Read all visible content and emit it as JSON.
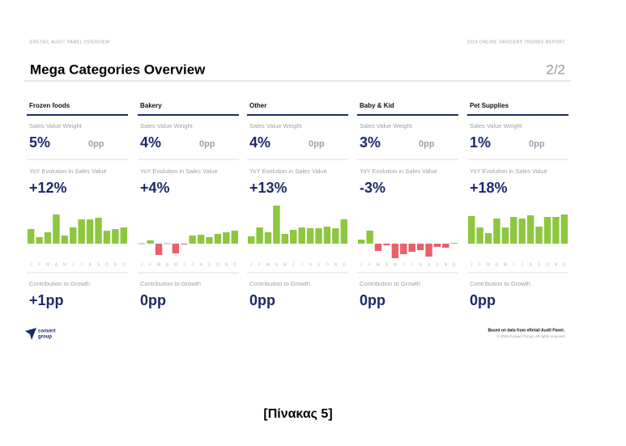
{
  "header": {
    "left": "ERETAIL AUDIT PANEL OVERVIEW",
    "right": "2024 ONLINE GROCERY TRENDS REPORT"
  },
  "title": "Mega Categories Overview",
  "page": "2/2",
  "labels": {
    "weight": "Sales Value Weight",
    "yoy": "YoY Evolution in Sales Value",
    "contribution": "Contribution to Growth"
  },
  "months": [
    "J",
    "F",
    "M",
    "A",
    "M",
    "J",
    "J",
    "A",
    "S",
    "O",
    "N",
    "D"
  ],
  "colors": {
    "positive": "#8dc63f",
    "negative": "#e8606b",
    "zero": "#aaaaaa"
  },
  "categories": [
    {
      "name": "Frozen foods",
      "weight": "5%",
      "weight_change": "0pp",
      "yoy": "+12%",
      "monthly": [
        9,
        4,
        7,
        18,
        5,
        10,
        15,
        15,
        16,
        8,
        9,
        10
      ],
      "contribution": "+1pp"
    },
    {
      "name": "Bakery",
      "weight": "4%",
      "weight_change": "0pp",
      "yoy": "+4%",
      "monthly": [
        0,
        2,
        -7,
        0,
        -6,
        -0.5,
        5,
        5.5,
        4,
        6,
        7,
        8
      ],
      "contribution": "0pp"
    },
    {
      "name": "Other",
      "weight": "4%",
      "weight_change": "0pp",
      "yoy": "+13%",
      "monthly": [
        4.5,
        10,
        7,
        23.5,
        6,
        8.5,
        10,
        9.5,
        9.5,
        10.5,
        9.5,
        15
      ],
      "contribution": "0pp"
    },
    {
      "name": "Baby & Kid",
      "weight": "3%",
      "weight_change": "0pp",
      "yoy": "-3%",
      "monthly": [
        2.5,
        8,
        -4.5,
        -1,
        -9,
        -6.5,
        -5,
        -4,
        -8,
        -2,
        -2.5,
        0.5
      ],
      "contribution": "0pp"
    },
    {
      "name": "Pet Supplies",
      "weight": "1%",
      "weight_change": "0pp",
      "yoy": "+18%",
      "monthly": [
        17,
        10,
        6.5,
        15.5,
        10,
        16.5,
        15.5,
        17.5,
        10.5,
        16.5,
        16.5,
        18
      ],
      "contribution": "0pp"
    }
  ],
  "logo": [
    "convert",
    "group"
  ],
  "footer": {
    "source": "Based on data from eRetail Audit Panel.",
    "copyright": "© 2025 Convert Group. All rights reserved"
  },
  "caption": "[Πίνακας 5]"
}
